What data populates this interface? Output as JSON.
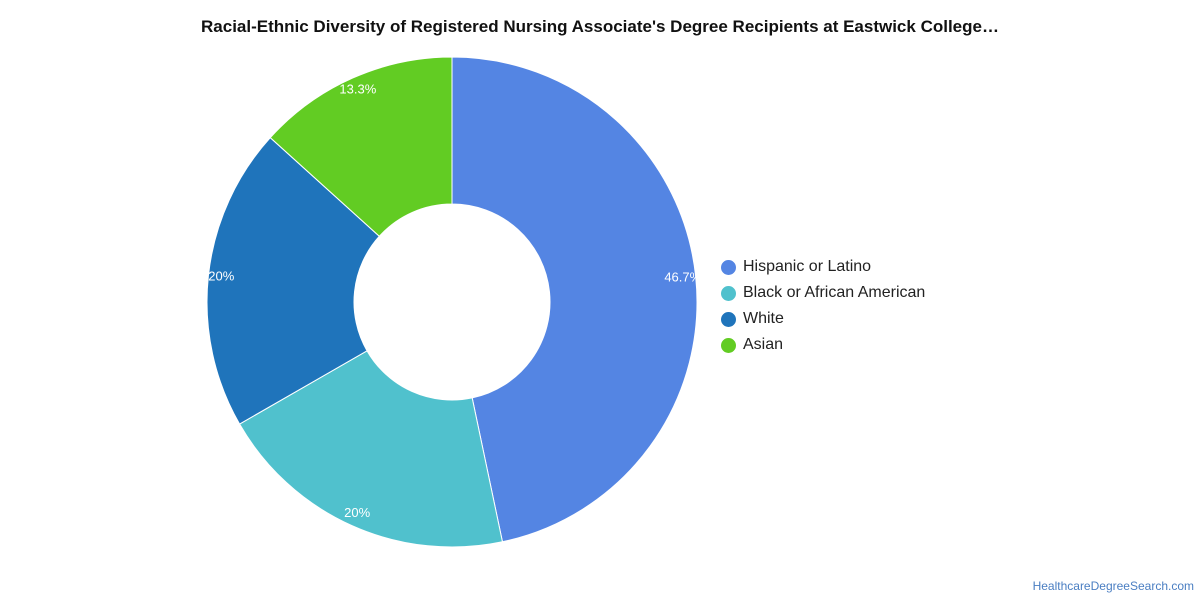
{
  "chart_data": {
    "type": "pie",
    "title": "Racial-Ethnic Diversity of Registered Nursing Associate's Degree Recipients at Eastwick College…",
    "donut": true,
    "categories": [
      "Hispanic or Latino",
      "Black or African American",
      "White",
      "Asian"
    ],
    "values": [
      46.7,
      20,
      20,
      13.3
    ],
    "data_labels": [
      "46.7%",
      "20%",
      "20%",
      "13.3%"
    ],
    "colors": [
      "#5485e3",
      "#50c1cd",
      "#1f74bb",
      "#62cc23"
    ],
    "legend_position": "right"
  },
  "source": {
    "label": "HealthcareDegreeSearch.com"
  }
}
